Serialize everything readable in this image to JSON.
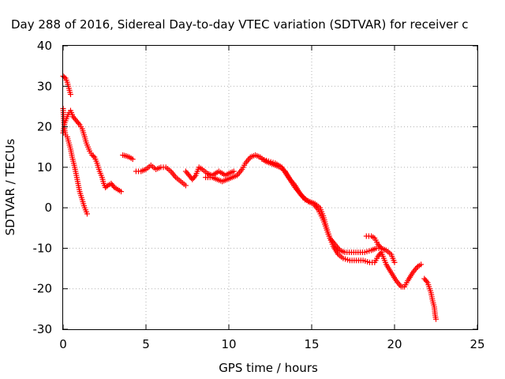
{
  "chart_data": {
    "type": "scatter",
    "title": "Day 288 of 2016, Sidereal Day-to-day VTEC variation (SDTVAR) for receiver c",
    "xlabel": "GPS time / hours",
    "ylabel": "SDTVAR / TECUs",
    "xlim": [
      0,
      25
    ],
    "ylim": [
      -30,
      40
    ],
    "xticks": [
      "0",
      "5",
      "10",
      "15",
      "20",
      "25"
    ],
    "yticks": [
      "-30",
      "-20",
      "-10",
      "0",
      "10",
      "20",
      "30",
      "40"
    ],
    "grid": true,
    "marker": "plus",
    "color": "#ff0000",
    "series": [
      {
        "segments": [
          [
            [
              0.0,
              32.5
            ],
            [
              0.15,
              32.0
            ],
            [
              0.25,
              31.0
            ],
            [
              0.35,
              29.5
            ],
            [
              0.45,
              28.0
            ]
          ],
          [
            [
              0.0,
              18.5
            ],
            [
              0.1,
              21.0
            ],
            [
              0.2,
              22.0
            ],
            [
              0.3,
              23.0
            ],
            [
              0.45,
              24.0
            ],
            [
              0.6,
              22.5
            ],
            [
              0.8,
              21.5
            ],
            [
              1.0,
              20.5
            ],
            [
              1.15,
              19.5
            ],
            [
              1.3,
              17.5
            ],
            [
              1.4,
              16.0
            ],
            [
              1.5,
              15.0
            ],
            [
              1.6,
              14.0
            ],
            [
              1.75,
              13.0
            ],
            [
              1.9,
              12.5
            ],
            [
              2.05,
              11.0
            ],
            [
              2.2,
              9.0
            ],
            [
              2.35,
              7.5
            ],
            [
              2.45,
              6.0
            ],
            [
              2.55,
              5.0
            ],
            [
              2.7,
              5.5
            ],
            [
              2.9,
              6.0
            ],
            [
              3.1,
              5.0
            ],
            [
              3.3,
              4.5
            ],
            [
              3.5,
              4.0
            ]
          ],
          [
            [
              0.0,
              24.5
            ],
            [
              0.05,
              21.0
            ],
            [
              0.1,
              19.0
            ],
            [
              0.15,
              18.0
            ],
            [
              0.25,
              17.5
            ],
            [
              0.35,
              16.0
            ],
            [
              0.45,
              14.5
            ],
            [
              0.55,
              12.5
            ],
            [
              0.7,
              10.0
            ],
            [
              0.85,
              7.0
            ],
            [
              1.0,
              4.0
            ],
            [
              1.15,
              2.0
            ],
            [
              1.3,
              0.0
            ],
            [
              1.45,
              -1.5
            ]
          ],
          [
            [
              3.6,
              13.0
            ],
            [
              3.8,
              12.8
            ],
            [
              4.0,
              12.5
            ],
            [
              4.2,
              12.0
            ]
          ],
          [
            [
              4.4,
              9.0
            ],
            [
              4.7,
              9.0
            ],
            [
              5.0,
              9.5
            ],
            [
              5.3,
              10.5
            ],
            [
              5.6,
              9.5
            ],
            [
              5.9,
              10.0
            ],
            [
              6.2,
              10.0
            ],
            [
              6.5,
              9.0
            ],
            [
              6.8,
              7.5
            ],
            [
              7.1,
              6.5
            ],
            [
              7.4,
              5.5
            ]
          ],
          [
            [
              7.4,
              9.0
            ],
            [
              7.6,
              8.0
            ],
            [
              7.8,
              7.0
            ],
            [
              8.0,
              8.0
            ],
            [
              8.2,
              10.0
            ],
            [
              8.4,
              9.5
            ],
            [
              8.7,
              8.5
            ],
            [
              9.0,
              8.0
            ],
            [
              9.2,
              8.5
            ],
            [
              9.4,
              9.0
            ],
            [
              9.6,
              8.5
            ],
            [
              9.8,
              8.0
            ],
            [
              10.0,
              8.5
            ],
            [
              10.3,
              9.0
            ]
          ],
          [
            [
              8.6,
              7.5
            ],
            [
              9.0,
              7.5
            ],
            [
              9.3,
              7.0
            ],
            [
              9.6,
              6.5
            ],
            [
              9.9,
              7.0
            ],
            [
              10.2,
              7.5
            ],
            [
              10.5,
              8.0
            ],
            [
              10.8,
              9.5
            ],
            [
              11.0,
              11.0
            ],
            [
              11.3,
              12.5
            ],
            [
              11.6,
              13.0
            ],
            [
              11.9,
              12.5
            ],
            [
              12.2,
              11.5
            ],
            [
              12.5,
              11.0
            ],
            [
              12.8,
              10.5
            ],
            [
              13.1,
              10.0
            ],
            [
              13.4,
              9.0
            ],
            [
              13.7,
              7.0
            ],
            [
              14.0,
              5.5
            ],
            [
              14.3,
              3.5
            ],
            [
              14.6,
              2.0
            ],
            [
              14.9,
              1.5
            ],
            [
              15.2,
              1.0
            ],
            [
              15.5,
              0.0
            ],
            [
              15.7,
              -2.0
            ],
            [
              15.9,
              -5.0
            ],
            [
              16.1,
              -7.5
            ],
            [
              16.4,
              -9.0
            ],
            [
              16.7,
              -10.5
            ],
            [
              17.0,
              -11.0
            ],
            [
              17.4,
              -11.0
            ],
            [
              17.8,
              -11.0
            ],
            [
              18.2,
              -11.0
            ],
            [
              18.6,
              -10.5
            ],
            [
              18.9,
              -10.0
            ],
            [
              19.2,
              -10.0
            ],
            [
              19.5,
              -10.5
            ],
            [
              19.8,
              -11.5
            ],
            [
              20.0,
              -13.5
            ]
          ],
          [
            [
              12.0,
              12.0
            ],
            [
              12.4,
              11.5
            ],
            [
              12.8,
              11.0
            ],
            [
              13.2,
              10.0
            ],
            [
              13.6,
              7.5
            ],
            [
              14.0,
              5.0
            ],
            [
              14.4,
              3.0
            ],
            [
              14.8,
              1.5
            ],
            [
              15.1,
              1.0
            ],
            [
              15.4,
              -0.5
            ],
            [
              15.7,
              -3.0
            ],
            [
              16.0,
              -6.5
            ],
            [
              16.3,
              -9.5
            ],
            [
              16.6,
              -11.5
            ],
            [
              16.9,
              -12.5
            ],
            [
              17.3,
              -13.0
            ],
            [
              17.7,
              -13.0
            ],
            [
              18.1,
              -13.0
            ],
            [
              18.5,
              -13.5
            ],
            [
              18.8,
              -13.5
            ],
            [
              19.0,
              -12.0
            ],
            [
              19.2,
              -11.0
            ],
            [
              19.5,
              -14.0
            ],
            [
              19.8,
              -16.0
            ],
            [
              20.1,
              -18.0
            ],
            [
              20.4,
              -19.5
            ],
            [
              20.6,
              -19.5
            ],
            [
              20.8,
              -18.0
            ],
            [
              21.1,
              -16.0
            ],
            [
              21.4,
              -14.5
            ],
            [
              21.6,
              -14.0
            ]
          ],
          [
            [
              18.3,
              -7.0
            ],
            [
              18.6,
              -7.0
            ],
            [
              18.8,
              -7.5
            ],
            [
              19.0,
              -9.0
            ],
            [
              19.2,
              -10.0
            ]
          ],
          [
            [
              21.8,
              -17.5
            ],
            [
              22.0,
              -18.5
            ],
            [
              22.2,
              -21.0
            ],
            [
              22.3,
              -23.0
            ],
            [
              22.4,
              -24.5
            ],
            [
              22.45,
              -26.5
            ],
            [
              22.5,
              -27.5
            ]
          ]
        ]
      }
    ]
  }
}
